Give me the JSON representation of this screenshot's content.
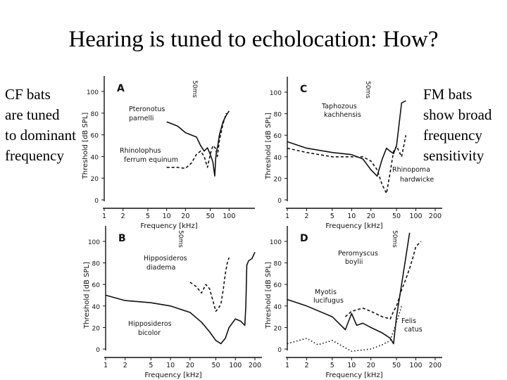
{
  "slide": {
    "title": "Hearing is tuned to echolocation: How?",
    "left_note": [
      "CF bats",
      "are tuned",
      "to dominant",
      "frequency"
    ],
    "right_note": [
      "FM bats",
      "show broad",
      "frequency",
      "sensitivity"
    ]
  },
  "colors": {
    "ink": "#111111",
    "background": "#ffffff"
  },
  "chart_data": [
    {
      "type": "line",
      "panel": "A",
      "xscale": "log",
      "xlabel": "Frequency [kHz]",
      "ylabel": "Threshold [dB SPL]",
      "xlim": [
        1,
        200
      ],
      "ylim": [
        0,
        100
      ],
      "xticks": [
        1,
        2,
        5,
        10,
        20,
        50,
        100
      ],
      "yticks": [
        0,
        20,
        40,
        60,
        80,
        100
      ],
      "marker_text": "50ms",
      "series": [
        {
          "name": "Pteronotus parnellii",
          "style": "solid",
          "x": [
            10,
            15,
            20,
            30,
            35,
            40,
            45,
            50,
            55,
            59,
            61,
            63,
            66,
            70,
            80,
            90,
            100
          ],
          "y": [
            72,
            68,
            62,
            58,
            50,
            45,
            48,
            42,
            35,
            22,
            38,
            45,
            50,
            60,
            72,
            78,
            82
          ]
        },
        {
          "name": "Rhinolophus ferrum equinum",
          "style": "dashed",
          "x": [
            10,
            15,
            20,
            25,
            30,
            35,
            40,
            45,
            50,
            55,
            60,
            65,
            70,
            80,
            90
          ],
          "y": [
            30,
            30,
            29,
            34,
            42,
            45,
            40,
            30,
            42,
            50,
            48,
            40,
            55,
            70,
            80
          ]
        }
      ],
      "labels": [
        "Pteronotus",
        "parnelli",
        "Rhinolophus",
        "ferrum equinum"
      ]
    },
    {
      "type": "line",
      "panel": "B",
      "xscale": "log",
      "xlabel": "Frequency [kHz]",
      "ylabel": "Threshold [dB SPL]",
      "xlim": [
        1,
        200
      ],
      "ylim": [
        0,
        100
      ],
      "xticks": [
        1,
        2,
        5,
        10,
        20,
        50,
        100,
        200
      ],
      "yticks": [
        0,
        20,
        40,
        60,
        80,
        100
      ],
      "marker_text": "50ms",
      "series": [
        {
          "name": "Hipposideros bicolor",
          "style": "solid",
          "x": [
            1,
            2,
            5,
            10,
            20,
            30,
            40,
            50,
            60,
            70,
            80,
            100,
            120,
            140,
            145,
            150,
            160,
            180,
            200
          ],
          "y": [
            50,
            45,
            43,
            40,
            34,
            25,
            16,
            8,
            5,
            10,
            20,
            28,
            26,
            22,
            40,
            78,
            82,
            84,
            90
          ]
        },
        {
          "name": "Hipposideros diadema",
          "style": "dashed",
          "x": [
            20,
            25,
            30,
            35,
            40,
            45,
            50,
            55,
            60,
            65,
            70,
            75,
            80
          ],
          "y": [
            62,
            58,
            52,
            60,
            56,
            45,
            35,
            38,
            42,
            55,
            70,
            80,
            85
          ]
        }
      ],
      "labels": [
        "Hipposideros",
        "diadema",
        "Hipposideros",
        "bicolor"
      ]
    },
    {
      "type": "line",
      "panel": "C",
      "xscale": "log",
      "xlabel": "Frequency [kHz]",
      "ylabel": "Threshold [dB SPL]",
      "xlim": [
        1,
        200
      ],
      "ylim": [
        0,
        100
      ],
      "xticks": [
        1,
        2,
        5,
        10,
        20,
        50,
        100,
        200
      ],
      "yticks": [
        0,
        20,
        40,
        60,
        80,
        100
      ],
      "marker_text": "50ms",
      "series": [
        {
          "name": "Taphozous kachhensis",
          "style": "solid",
          "x": [
            1,
            2,
            5,
            10,
            15,
            20,
            25,
            30,
            35,
            40,
            45,
            50,
            60,
            70
          ],
          "y": [
            54,
            48,
            44,
            42,
            38,
            28,
            22,
            38,
            48,
            45,
            43,
            50,
            90,
            92
          ]
        },
        {
          "name": "Rhinopoma hardwickei",
          "style": "dashed",
          "x": [
            1,
            2,
            5,
            10,
            15,
            20,
            25,
            30,
            35,
            40,
            45,
            50,
            60,
            70
          ],
          "y": [
            48,
            44,
            40,
            40,
            40,
            36,
            28,
            14,
            6,
            26,
            45,
            50,
            40,
            60
          ]
        }
      ],
      "labels": [
        "Taphozous",
        "kachhensis",
        "Rhinopoma",
        "hardwicke"
      ]
    },
    {
      "type": "line",
      "panel": "D",
      "xscale": "log",
      "xlabel": "Frequency [kHz]",
      "ylabel": "Threshold [dB SPL]",
      "xlim": [
        1,
        200
      ],
      "ylim": [
        0,
        100
      ],
      "xticks": [
        1,
        2,
        5,
        10,
        20,
        50,
        100,
        200
      ],
      "yticks": [
        0,
        20,
        40,
        60,
        80,
        100
      ],
      "marker_text": "50ms",
      "series": [
        {
          "name": "Myotis lucifugus",
          "style": "solid",
          "x": [
            1,
            2,
            5,
            8,
            10,
            12,
            15,
            20,
            30,
            40,
            45,
            50,
            60,
            80
          ],
          "y": [
            46,
            40,
            30,
            18,
            33,
            22,
            24,
            20,
            15,
            10,
            5,
            30,
            60,
            108
          ]
        },
        {
          "name": "Peromyscus boylii",
          "style": "dashed",
          "x": [
            8,
            10,
            15,
            20,
            30,
            40,
            45,
            50,
            60,
            70,
            80,
            90,
            100,
            120
          ],
          "y": [
            30,
            35,
            38,
            35,
            30,
            28,
            35,
            40,
            55,
            65,
            75,
            85,
            95,
            100
          ]
        },
        {
          "name": "Felis catus",
          "style": "dotted",
          "x": [
            1,
            2,
            3,
            5,
            10,
            20,
            30,
            40,
            50,
            60
          ],
          "y": [
            5,
            10,
            4,
            8,
            -2,
            0,
            4,
            8,
            25,
            40
          ]
        }
      ],
      "labels": [
        "Peromyscus",
        "boylii",
        "Myotis",
        "lucifugus",
        "Felis",
        "catus"
      ]
    }
  ]
}
